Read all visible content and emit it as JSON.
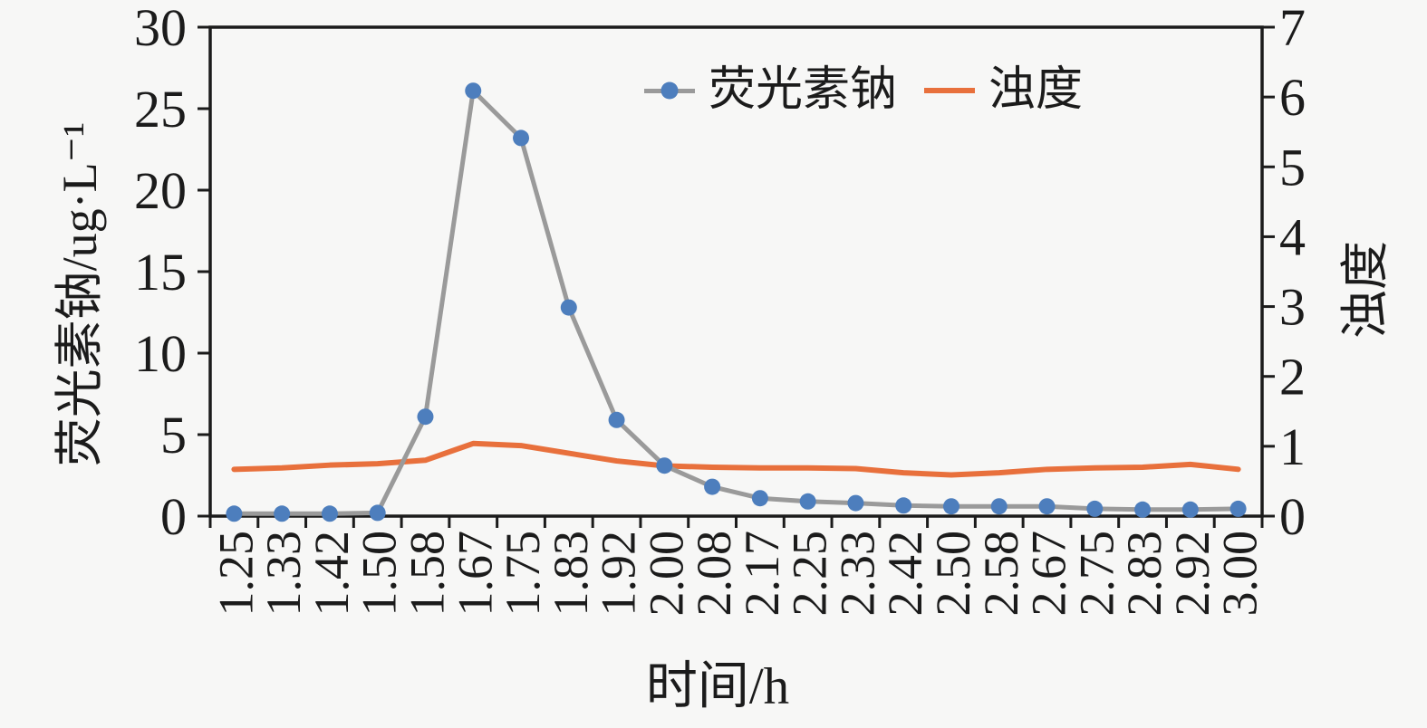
{
  "chart_data": {
    "type": "line",
    "title": "",
    "xlabel": "时间/h",
    "ylabel_left": "荧光素钠/ug·L⁻¹",
    "ylabel_right": "浊度",
    "x_categories": [
      "1.25",
      "1.33",
      "1.42",
      "1.50",
      "1.58",
      "1.67",
      "1.75",
      "1.83",
      "1.92",
      "2.00",
      "2.08",
      "2.17",
      "2.25",
      "2.33",
      "2.42",
      "2.50",
      "2.58",
      "2.67",
      "2.75",
      "2.83",
      "2.92",
      "3.00"
    ],
    "series": [
      {
        "name": "荧光素钠",
        "axis": "left",
        "marker": "circle",
        "line_color": "#9a9a9a",
        "marker_color": "#4d7ebd",
        "values": [
          0.15,
          0.15,
          0.15,
          0.2,
          6.1,
          26.1,
          23.2,
          12.8,
          5.9,
          3.1,
          1.8,
          1.1,
          0.9,
          0.8,
          0.65,
          0.6,
          0.6,
          0.6,
          0.45,
          0.4,
          0.4,
          0.45
        ]
      },
      {
        "name": "浊度",
        "axis": "right",
        "marker": "none",
        "line_color": "#e8703c",
        "values": [
          0.67,
          0.69,
          0.73,
          0.75,
          0.8,
          1.04,
          1.01,
          0.9,
          0.79,
          0.72,
          0.7,
          0.69,
          0.69,
          0.68,
          0.62,
          0.59,
          0.62,
          0.67,
          0.69,
          0.7,
          0.74,
          0.67
        ]
      }
    ],
    "y_left_axis": {
      "min": 0,
      "max": 30,
      "ticks": [
        0,
        5,
        10,
        15,
        20,
        25,
        30
      ]
    },
    "y_right_axis": {
      "min": 0,
      "max": 7,
      "ticks": [
        0,
        1,
        2,
        3,
        4,
        5,
        6,
        7
      ]
    },
    "grid": false,
    "legend_position": "top-center-inside",
    "colors": {
      "axis": "#1b1b1b",
      "background": "#f7f7f6"
    }
  }
}
